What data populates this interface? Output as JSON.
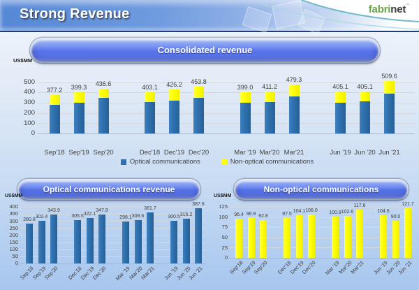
{
  "header": {
    "title": "Strong Revenue",
    "logo": {
      "part1": "fabri",
      "part2": "net",
      "mark": "™"
    }
  },
  "colors": {
    "optical_blue": "#2D70AD",
    "non_optical_yellow": "#FFFF00",
    "pill_blue": "#5C7BEC",
    "header_blue": "#5587D6",
    "logo_green": "#6AA644",
    "logo_dark": "#3B3B3B"
  },
  "chart_data": [
    {
      "type": "bar",
      "stacked": true,
      "title": "Consolidated revenue",
      "unit_label": "US$MM",
      "categories": [
        "Sep'18",
        "Sep'19",
        "Sep'20",
        "Dec'18",
        "Dec'19",
        "Dec'20",
        "Mar '19",
        "Mar'20",
        "Mar'21",
        "Jun '19",
        "Jun '20",
        "Jun '21"
      ],
      "series": [
        {
          "name": "Optical communications",
          "color": "#2D70AD",
          "values": [
            280.8,
            302.4,
            343.9,
            305.5,
            322.1,
            347.8,
            298.1,
            308.6,
            361.7,
            300.5,
            315.2,
            387.8
          ]
        },
        {
          "name": "Non-optical communications",
          "color": "#FFFF00",
          "values": [
            96.4,
            96.9,
            92.8,
            97.5,
            104.1,
            106.0,
            100.8,
            102.6,
            117.6,
            104.6,
            90.0,
            121.7
          ]
        }
      ],
      "totals": [
        377.2,
        399.3,
        436.6,
        403.1,
        426.2,
        453.8,
        399.0,
        411.2,
        479.3,
        405.1,
        405.1,
        509.6
      ],
      "ylim": [
        0,
        500
      ],
      "ytick_step": 100,
      "grid": true,
      "legend_position": "bottom"
    },
    {
      "type": "bar",
      "title": "Optical communications revenue",
      "unit_label": "US$MM",
      "categories": [
        "Sep'18",
        "Sep'19",
        "Sep'20",
        "Dec'18",
        "Dec'19",
        "Dec'20",
        "Mar '19",
        "Mar'20",
        "Mar'21",
        "Jun '19",
        "Jun '20",
        "Jun '21"
      ],
      "values": [
        280.8,
        302.4,
        343.9,
        305.5,
        322.1,
        347.8,
        298.1,
        308.6,
        361.7,
        300.5,
        315.2,
        387.8
      ],
      "bar_color": "#2D70AD",
      "ylim": [
        0,
        400
      ],
      "ytick_step": 50,
      "grid": true,
      "legend_position": "none"
    },
    {
      "type": "bar",
      "title": "Non-optical communications",
      "unit_label": "US$MM",
      "categories": [
        "Sep'18",
        "Sep'19",
        "Sep'20",
        "Dec'18",
        "Dec'19",
        "Dec'20",
        "Mar '19",
        "Mar'20",
        "Mar'21",
        "Jun '19",
        "Jun '20",
        "Jun '21"
      ],
      "values": [
        96.4,
        96.9,
        92.8,
        97.5,
        104.1,
        106.0,
        100.8,
        102.6,
        117.6,
        104.6,
        90.0,
        121.7
      ],
      "bar_color": "#FFFF00",
      "ylim": [
        0,
        125
      ],
      "ytick_step": 25,
      "grid": true,
      "legend_position": "none"
    }
  ]
}
